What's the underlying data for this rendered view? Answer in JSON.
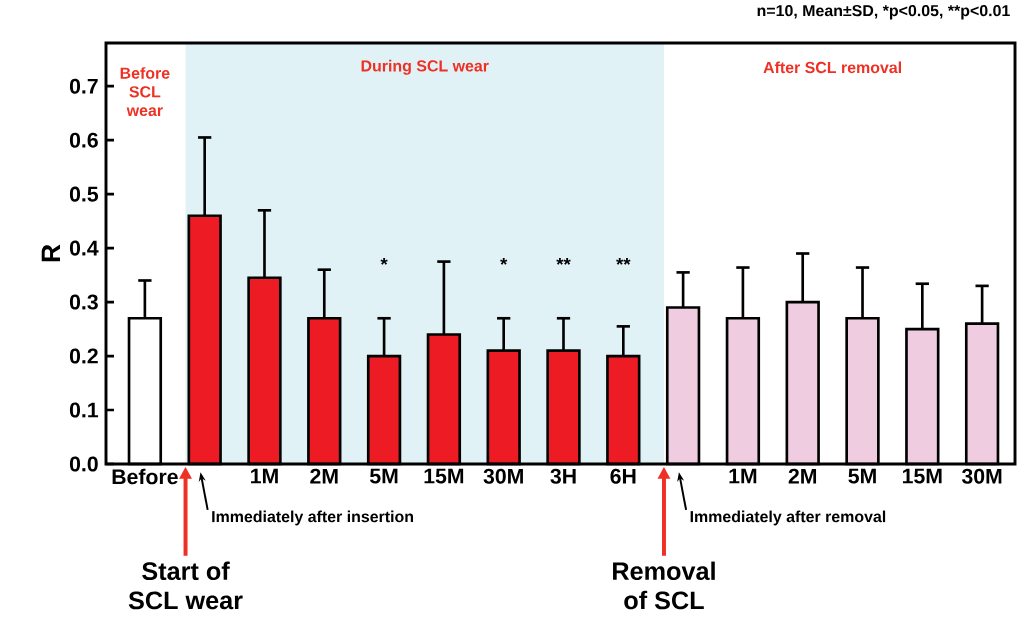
{
  "chart_data": {
    "type": "bar",
    "ylabel": "R",
    "categories": [
      "Before",
      null,
      "1M",
      "2M",
      "5M",
      "15M",
      "30M",
      "3H",
      "6H",
      null,
      "1M",
      "2M",
      "5M",
      "15M",
      "30M"
    ],
    "values": [
      0.27,
      0.46,
      0.345,
      0.27,
      0.2,
      0.24,
      0.21,
      0.21,
      0.2,
      0.29,
      0.27,
      0.3,
      0.27,
      0.25,
      0.26
    ],
    "colors": [
      "#ffffff",
      "#ed1c24",
      "#ed1c24",
      "#ed1c24",
      "#ed1c24",
      "#ed1c24",
      "#ed1c24",
      "#ed1c24",
      "#ed1c24",
      "#efcce0",
      "#efcce0",
      "#efcce0",
      "#efcce0",
      "#efcce0",
      "#efcce0"
    ],
    "errors": [
      [
        0.27,
        0.34
      ],
      [
        0.46,
        0.605
      ],
      [
        0.345,
        0.47
      ],
      [
        0.27,
        0.36
      ],
      [
        0.2,
        0.27
      ],
      [
        0.24,
        0.375
      ],
      [
        0.21,
        0.27
      ],
      [
        0.21,
        0.27
      ],
      [
        0.2,
        0.255
      ],
      [
        0.29,
        0.355
      ],
      [
        0.27,
        0.364
      ],
      [
        0.3,
        0.39
      ],
      [
        0.27,
        0.364
      ],
      [
        0.25,
        0.334
      ],
      [
        0.26,
        0.33
      ]
    ],
    "ylim": [
      0,
      0.78
    ],
    "yticks": [
      {
        "value": 0,
        "label": "0.0"
      },
      0.1,
      0.2,
      0.3,
      0.4,
      0.5,
      0.6,
      0.7
    ],
    "annotations": [
      "n=10, Mean±SD, *p<0.05, **p<0.01",
      "Before SCL wear",
      "During SCL wear",
      "After SCL removal",
      "Immediately after insertion",
      "Immediately after removal",
      "Start of SCL wear",
      "Removal of SCL",
      "*",
      "*",
      "**",
      "**"
    ]
  }
}
